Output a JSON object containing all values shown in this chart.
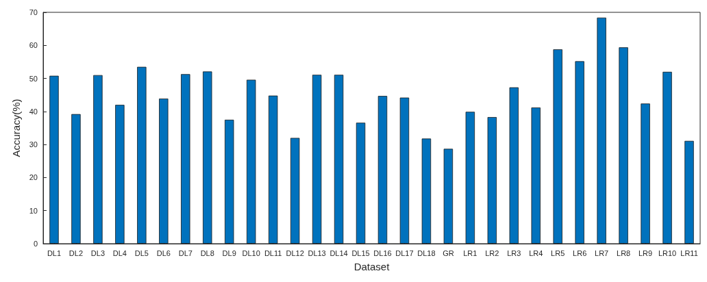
{
  "chart_data": {
    "type": "bar",
    "xlabel": "Dataset",
    "ylabel": "Accuracy(%)",
    "categories": [
      "DL1",
      "DL2",
      "DL3",
      "DL4",
      "DL5",
      "DL6",
      "DL7",
      "DL8",
      "DL9",
      "DL10",
      "DL11",
      "DL12",
      "DL13",
      "DL14",
      "DL15",
      "DL16",
      "DL17",
      "DL18",
      "GR",
      "LR1",
      "LR2",
      "LR3",
      "LR4",
      "LR5",
      "LR6",
      "LR7",
      "LR8",
      "LR9",
      "LR10",
      "LR11"
    ],
    "values": [
      50.8,
      39.2,
      51.0,
      42.0,
      53.5,
      43.9,
      51.3,
      52.1,
      37.5,
      49.6,
      44.8,
      32.0,
      51.1,
      51.1,
      36.6,
      44.7,
      44.2,
      31.8,
      28.7,
      39.9,
      38.3,
      47.3,
      41.2,
      58.8,
      55.2,
      68.4,
      59.4,
      42.4,
      52.0,
      31.1
    ],
    "color": "#0072bd",
    "ylim": [
      0,
      70
    ],
    "yticks": [
      0,
      10,
      20,
      30,
      40,
      50,
      60,
      70
    ],
    "grid": false
  }
}
